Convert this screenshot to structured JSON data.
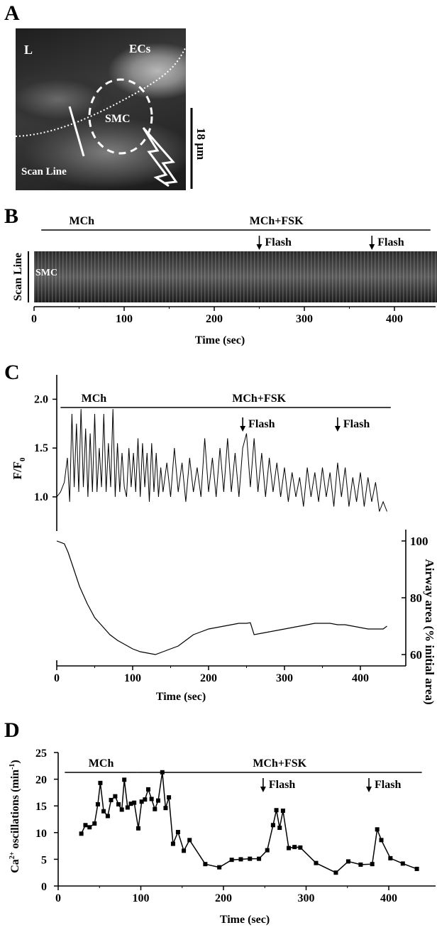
{
  "panels": {
    "a": {
      "label": "A"
    },
    "b": {
      "label": "B"
    },
    "c": {
      "label": "C"
    },
    "d": {
      "label": "D"
    }
  },
  "micrograph": {
    "lumen_label": "L",
    "ecs_label": "ECs",
    "smc_label": "SMC",
    "scan_line_label": "Scan Line",
    "scale_label": "18 µm"
  },
  "kymograph": {
    "ylabel": "Scan Line",
    "smc_label": "SMC",
    "xlabel": "Time (sec)",
    "xticks": [
      0,
      100,
      200,
      300,
      400
    ],
    "xlim": [
      0,
      440
    ],
    "treatments": [
      {
        "label": "MCh",
        "start": 8,
        "end": 98
      },
      {
        "label": "MCh+FSK",
        "start": 98,
        "end": 440
      }
    ],
    "events": [
      {
        "label": "Flash",
        "x": 250
      },
      {
        "label": "Flash",
        "x": 375
      }
    ]
  },
  "chart_data": [
    {
      "type": "line",
      "panel": "C-top",
      "ylabel": "F/F0",
      "ylabel_main": "F/F",
      "ylabel_sub": "0",
      "ylim": [
        0.65,
        2.25
      ],
      "yticks": [
        1.0,
        1.5,
        2.0
      ],
      "xlim": [
        0,
        440
      ],
      "treatments": [
        {
          "label": "MCh",
          "start": 5,
          "end": 93
        },
        {
          "label": "MCh+FSK",
          "start": 93,
          "end": 440
        }
      ],
      "events": [
        {
          "label": "Flash",
          "x": 245
        },
        {
          "label": "Flash",
          "x": 370
        }
      ],
      "series": [
        {
          "points": [
            [
              0,
              1.0
            ],
            [
              5,
              1.05
            ],
            [
              10,
              1.15
            ],
            [
              14,
              1.4
            ],
            [
              17,
              0.95
            ],
            [
              20,
              1.85
            ],
            [
              23,
              1.1
            ],
            [
              26,
              1.75
            ],
            [
              29,
              1.05
            ],
            [
              32,
              1.9
            ],
            [
              35,
              1.1
            ],
            [
              38,
              1.7
            ],
            [
              41,
              1.0
            ],
            [
              44,
              1.65
            ],
            [
              47,
              1.05
            ],
            [
              50,
              1.85
            ],
            [
              53,
              1.05
            ],
            [
              56,
              1.5
            ],
            [
              59,
              1.1
            ],
            [
              62,
              1.85
            ],
            [
              65,
              1.05
            ],
            [
              68,
              1.55
            ],
            [
              71,
              1.1
            ],
            [
              74,
              1.9
            ],
            [
              77,
              1.0
            ],
            [
              80,
              1.55
            ],
            [
              83,
              1.05
            ],
            [
              86,
              1.45
            ],
            [
              89,
              1.1
            ],
            [
              92,
              1.0
            ],
            [
              95,
              1.5
            ],
            [
              98,
              1.1
            ],
            [
              101,
              1.45
            ],
            [
              104,
              1.05
            ],
            [
              107,
              1.6
            ],
            [
              110,
              1.0
            ],
            [
              113,
              1.55
            ],
            [
              116,
              1.1
            ],
            [
              119,
              1.45
            ],
            [
              122,
              0.95
            ],
            [
              125,
              1.55
            ],
            [
              128,
              1.05
            ],
            [
              131,
              1.45
            ],
            [
              134,
              1.0
            ],
            [
              137,
              1.3
            ],
            [
              140,
              1.05
            ],
            [
              145,
              1.35
            ],
            [
              150,
              1.0
            ],
            [
              155,
              1.5
            ],
            [
              160,
              1.05
            ],
            [
              165,
              1.35
            ],
            [
              170,
              0.95
            ],
            [
              175,
              1.4
            ],
            [
              180,
              1.05
            ],
            [
              185,
              1.3
            ],
            [
              190,
              1.0
            ],
            [
              195,
              1.6
            ],
            [
              200,
              1.05
            ],
            [
              205,
              1.4
            ],
            [
              210,
              1.0
            ],
            [
              215,
              1.5
            ],
            [
              220,
              1.05
            ],
            [
              225,
              1.6
            ],
            [
              230,
              1.05
            ],
            [
              235,
              1.45
            ],
            [
              240,
              1.0
            ],
            [
              245,
              1.5
            ],
            [
              250,
              1.65
            ],
            [
              255,
              1.1
            ],
            [
              260,
              1.6
            ],
            [
              265,
              1.05
            ],
            [
              270,
              1.45
            ],
            [
              275,
              1.0
            ],
            [
              280,
              1.4
            ],
            [
              285,
              1.05
            ],
            [
              290,
              1.35
            ],
            [
              295,
              1.0
            ],
            [
              300,
              1.3
            ],
            [
              305,
              0.95
            ],
            [
              310,
              1.25
            ],
            [
              315,
              1.0
            ],
            [
              320,
              1.2
            ],
            [
              325,
              0.9
            ],
            [
              330,
              1.3
            ],
            [
              335,
              1.0
            ],
            [
              340,
              1.25
            ],
            [
              345,
              0.95
            ],
            [
              350,
              1.3
            ],
            [
              355,
              1.0
            ],
            [
              360,
              1.25
            ],
            [
              365,
              0.9
            ],
            [
              370,
              1.35
            ],
            [
              375,
              1.0
            ],
            [
              380,
              1.3
            ],
            [
              385,
              0.9
            ],
            [
              390,
              1.2
            ],
            [
              395,
              0.95
            ],
            [
              400,
              1.25
            ],
            [
              405,
              0.9
            ],
            [
              410,
              1.2
            ],
            [
              415,
              0.95
            ],
            [
              420,
              1.15
            ],
            [
              425,
              0.85
            ],
            [
              430,
              0.95
            ],
            [
              435,
              0.85
            ]
          ]
        }
      ]
    },
    {
      "type": "line",
      "panel": "C-bottom",
      "xlabel": "Time (sec)",
      "ylabel": "Airway area (% initial area)",
      "xlim": [
        0,
        440
      ],
      "ylim": [
        56,
        104
      ],
      "xticks": [
        0,
        100,
        200,
        300,
        400
      ],
      "yticks": [
        60,
        80,
        100
      ],
      "series": [
        {
          "points": [
            [
              0,
              100
            ],
            [
              10,
              99
            ],
            [
              15,
              96
            ],
            [
              20,
              92
            ],
            [
              30,
              84
            ],
            [
              40,
              78
            ],
            [
              50,
              73
            ],
            [
              60,
              70
            ],
            [
              70,
              67
            ],
            [
              80,
              65
            ],
            [
              90,
              63.5
            ],
            [
              100,
              62
            ],
            [
              110,
              61
            ],
            [
              120,
              60.5
            ],
            [
              130,
              60
            ],
            [
              140,
              61
            ],
            [
              150,
              62
            ],
            [
              160,
              63
            ],
            [
              170,
              65
            ],
            [
              180,
              67
            ],
            [
              190,
              68
            ],
            [
              200,
              69
            ],
            [
              210,
              69.5
            ],
            [
              220,
              70
            ],
            [
              230,
              70.5
            ],
            [
              240,
              71
            ],
            [
              250,
              71
            ],
            [
              255,
              71.2
            ],
            [
              260,
              67
            ],
            [
              270,
              67.5
            ],
            [
              280,
              68
            ],
            [
              290,
              68.5
            ],
            [
              300,
              69
            ],
            [
              310,
              69.5
            ],
            [
              320,
              70
            ],
            [
              330,
              70.5
            ],
            [
              340,
              71
            ],
            [
              350,
              71
            ],
            [
              360,
              71
            ],
            [
              370,
              70.5
            ],
            [
              380,
              70.5
            ],
            [
              390,
              70
            ],
            [
              400,
              69.5
            ],
            [
              410,
              69
            ],
            [
              420,
              69
            ],
            [
              430,
              69
            ],
            [
              435,
              70
            ]
          ]
        }
      ]
    },
    {
      "type": "line",
      "panel": "D",
      "xlabel": "Time (sec)",
      "ylabel": "Ca2+ oscillations (min-1)",
      "ylabel_ca": "Ca",
      "ylabel_sup": "2+",
      "ylabel_mid": " oscillations (min",
      "ylabel_exp": "-1",
      "ylabel_end": ")",
      "xlim": [
        0,
        440
      ],
      "ylim": [
        0,
        25
      ],
      "xticks": [
        0,
        100,
        200,
        300,
        400
      ],
      "yticks": [
        0,
        5,
        10,
        15,
        20,
        25
      ],
      "treatments": [
        {
          "label": "MCh",
          "start": 8,
          "end": 96
        },
        {
          "label": "MCh+FSK",
          "start": 96,
          "end": 440
        }
      ],
      "events": [
        {
          "label": "Flash",
          "x": 248
        },
        {
          "label": "Flash",
          "x": 376
        }
      ],
      "series": [
        {
          "markers": true,
          "points": [
            [
              28,
              9.8
            ],
            [
              33,
              11.4
            ],
            [
              38,
              11.0
            ],
            [
              44,
              11.7
            ],
            [
              48,
              15.3
            ],
            [
              51,
              19.3
            ],
            [
              55,
              14.0
            ],
            [
              60,
              13.1
            ],
            [
              64,
              16.1
            ],
            [
              69,
              16.8
            ],
            [
              73,
              15.3
            ],
            [
              77,
              14.3
            ],
            [
              80,
              19.9
            ],
            [
              84,
              14.7
            ],
            [
              88,
              15.4
            ],
            [
              92,
              15.6
            ],
            [
              97,
              10.8
            ],
            [
              101,
              15.8
            ],
            [
              105,
              16.2
            ],
            [
              109,
              18.1
            ],
            [
              113,
              16.3
            ],
            [
              117,
              14.4
            ],
            [
              121,
              16.0
            ],
            [
              126,
              21.3
            ],
            [
              130,
              14.6
            ],
            [
              134,
              16.6
            ],
            [
              139,
              7.9
            ],
            [
              145,
              10.1
            ],
            [
              152,
              6.6
            ],
            [
              159,
              8.6
            ],
            [
              178,
              4.1
            ],
            [
              195,
              3.5
            ],
            [
              210,
              4.9
            ],
            [
              221,
              5.0
            ],
            [
              232,
              5.1
            ],
            [
              243,
              5.1
            ],
            [
              253,
              6.7
            ],
            [
              260,
              11.4
            ],
            [
              264,
              14.2
            ],
            [
              268,
              10.9
            ],
            [
              272,
              14.1
            ],
            [
              279,
              7.1
            ],
            [
              286,
              7.3
            ],
            [
              293,
              7.2
            ],
            [
              312,
              4.3
            ],
            [
              336,
              2.5
            ],
            [
              351,
              4.6
            ],
            [
              366,
              4.0
            ],
            [
              380,
              4.1
            ],
            [
              386,
              10.6
            ],
            [
              391,
              8.6
            ],
            [
              402,
              5.2
            ],
            [
              417,
              4.2
            ],
            [
              434,
              3.2
            ]
          ]
        }
      ]
    }
  ]
}
